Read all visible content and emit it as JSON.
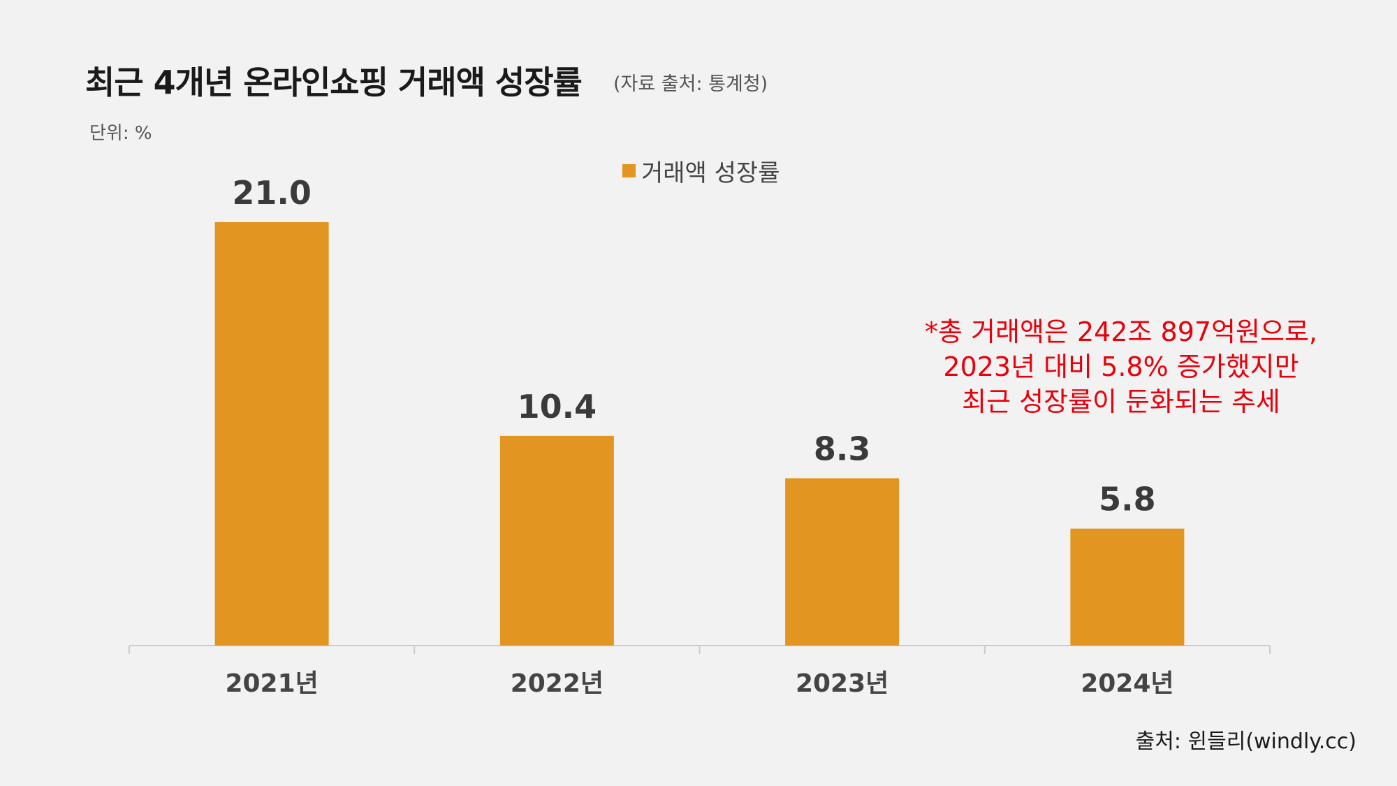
{
  "chart_data": {
    "type": "bar",
    "title": "최근 4개년 온라인쇼핑 거래액 성장률",
    "subtitle": "(자료 출처: 통계청)",
    "unit_label": "단위: %",
    "categories": [
      "2021년",
      "2022년",
      "2023년",
      "2024년"
    ],
    "series": [
      {
        "name": "거래액 성장률",
        "values": [
          21.0,
          10.4,
          8.3,
          5.8
        ],
        "color": "#e29520"
      }
    ],
    "data_labels": [
      "21.0",
      "10.4",
      "8.3",
      "5.8"
    ],
    "ylim": [
      0,
      25
    ],
    "grid": false,
    "legend": "top-center",
    "annotation": [
      "*총 거래액은 242조 897억원으로,",
      "2023년 대비 5.8% 증가했지만",
      "최근 성장률이 둔화되는 추세"
    ],
    "annotation_color": "#e8000b"
  },
  "footer": {
    "credit": "출처: 윈들리(windly.cc)"
  }
}
